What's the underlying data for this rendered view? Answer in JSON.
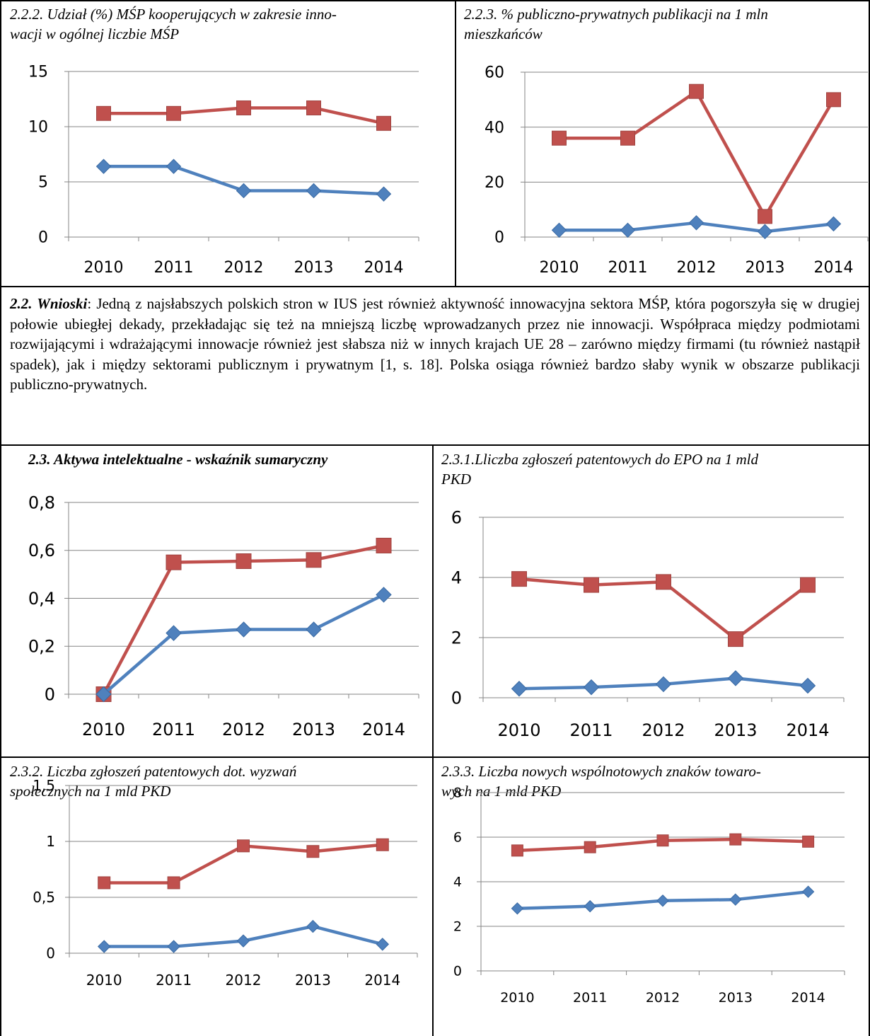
{
  "colors": {
    "red": "#c0504d",
    "blue": "#4f81bd",
    "grid": "#868686",
    "axis": "#868686"
  },
  "section_2_2_heading": "2.2. Wnioski",
  "section_2_2_text": ": Jedną z najsłabszych polskich stron w IUS jest również aktywność innowacyjna sektora MŚP, która pogorszyła się w drugiej połowie ubiegłej dekady, przekładając się też na mniejszą liczbę wprowadzanych przez nie innowacji. Współpraca między podmiotami rozwijającymi i wdrażającymi innowacje również jest słabsza niż w innych krajach UE 28 – zarówno między firmami (tu również nastąpił spadek), jak i między sektorami publicznym i prywatnym [1, s. 18]. Polska osiąga również bardzo słaby wynik w obszarze publikacji publiczno-prywatnych.",
  "chart_data": [
    {
      "id": "c222",
      "type": "line",
      "title": "2.2.2. Udział (%) MŚP kooperujących w zakresie innowacji w ogólnej liczbie MŚP",
      "title_lines": [
        "2.2.2. Udział (%) MŚP kooperujących w zakresie inno-",
        "wacji w ogólnej liczbie MŚP"
      ],
      "categories": [
        "2010",
        "2011",
        "2012",
        "2013",
        "2014"
      ],
      "yticks": [
        "0",
        "5",
        "10",
        "15"
      ],
      "ylim": [
        0,
        15
      ],
      "series": [
        {
          "color": "red",
          "marker": "square",
          "values": [
            11.2,
            11.2,
            11.7,
            11.7,
            10.3
          ]
        },
        {
          "color": "blue",
          "marker": "diamond",
          "values": [
            6.4,
            6.4,
            4.2,
            4.2,
            3.9
          ]
        }
      ]
    },
    {
      "id": "c223",
      "type": "line",
      "title": "2.2.3. % publiczno-prywatnych publikacji na 1 mln mieszkańców",
      "title_lines": [
        "2.2.3. % publiczno-prywatnych publikacji na 1 mln",
        "mieszkańców"
      ],
      "categories": [
        "2010",
        "2011",
        "2012",
        "2013",
        "2014"
      ],
      "yticks": [
        "0",
        "20",
        "40",
        "60"
      ],
      "ylim": [
        0,
        60
      ],
      "series": [
        {
          "color": "red",
          "marker": "square",
          "values": [
            36,
            36,
            53,
            7.5,
            50
          ]
        },
        {
          "color": "blue",
          "marker": "diamond",
          "values": [
            2.5,
            2.5,
            5.2,
            2,
            4.8
          ]
        }
      ]
    },
    {
      "id": "c23",
      "type": "line",
      "title": "2.3. Aktywa intelektualne - wskaźnik sumaryczny",
      "title_lines": [
        "2.3. Aktywa intelektualne - wskaźnik sumaryczny"
      ],
      "categories": [
        "2010",
        "2011",
        "2012",
        "2013",
        "2014"
      ],
      "yticks": [
        "0",
        "0,2",
        "0,4",
        "0,6",
        "0,8"
      ],
      "ylim": [
        0,
        0.8
      ],
      "series": [
        {
          "color": "red",
          "marker": "square",
          "values": [
            0,
            0.55,
            0.555,
            0.56,
            0.62
          ]
        },
        {
          "color": "blue",
          "marker": "diamond",
          "values": [
            0,
            0.255,
            0.27,
            0.27,
            0.415
          ]
        }
      ]
    },
    {
      "id": "c231",
      "type": "line",
      "title": "2.3.1.Lliczba zgłoszeń patentowych do EPO na 1 mld PKD",
      "title_lines": [
        "2.3.1.Lliczba zgłoszeń patentowych do EPO na 1 mld",
        "PKD"
      ],
      "categories": [
        "2010",
        "2011",
        "2012",
        "2013",
        "2014"
      ],
      "yticks": [
        "0",
        "2",
        "4",
        "6"
      ],
      "ylim": [
        0,
        6
      ],
      "series": [
        {
          "color": "red",
          "marker": "square",
          "values": [
            3.95,
            3.75,
            3.85,
            1.95,
            3.75
          ]
        },
        {
          "color": "blue",
          "marker": "diamond",
          "values": [
            0.3,
            0.35,
            0.45,
            0.65,
            0.4
          ]
        }
      ]
    },
    {
      "id": "c232",
      "type": "line",
      "title": "2.3.2. Liczba zgłoszeń patentowych dot. wyzwań społecznych na 1 mld PKD",
      "title_lines": [
        "2.3.2. Liczba zgłoszeń patentowych dot. wyzwań",
        "społecznych na 1 mld PKD"
      ],
      "categories": [
        "2010",
        "2011",
        "2012",
        "2013",
        "2014"
      ],
      "yticks": [
        "0",
        "0,5",
        "1",
        "1,5"
      ],
      "ylim": [
        0,
        1.5
      ],
      "series": [
        {
          "color": "red",
          "marker": "square",
          "values": [
            0.63,
            0.63,
            0.96,
            0.91,
            0.97
          ]
        },
        {
          "color": "blue",
          "marker": "diamond",
          "values": [
            0.06,
            0.06,
            0.11,
            0.24,
            0.08
          ]
        }
      ]
    },
    {
      "id": "c233",
      "type": "line",
      "title": "2.3.3. Liczba nowych wspólnotowych znaków towarowych na 1 mld PKD",
      "title_lines": [
        "2.3.3. Liczba nowych wspólnotowych znaków towaro-",
        "wych na 1 mld PKD"
      ],
      "categories": [
        "2010",
        "2011",
        "2012",
        "2013",
        "2014"
      ],
      "yticks": [
        "0",
        "2",
        "4",
        "6",
        "8"
      ],
      "ylim": [
        0,
        8
      ],
      "series": [
        {
          "color": "red",
          "marker": "square",
          "values": [
            5.4,
            5.55,
            5.85,
            5.9,
            5.8
          ]
        },
        {
          "color": "blue",
          "marker": "diamond",
          "values": [
            2.8,
            2.9,
            3.15,
            3.2,
            3.55
          ]
        }
      ]
    }
  ]
}
